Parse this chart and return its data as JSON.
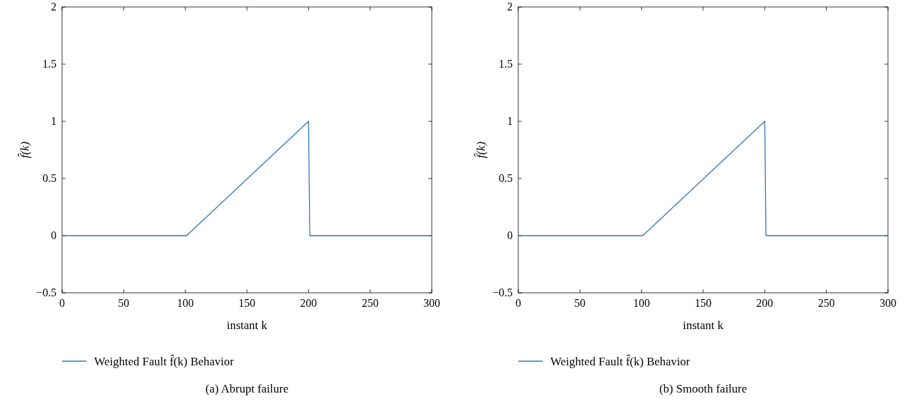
{
  "chart_data": [
    {
      "type": "line",
      "title": "(a)  Abrupt failure",
      "xlabel": "instant k",
      "ylabel": "f̂(k)",
      "x": [
        0,
        101,
        200,
        201,
        300
      ],
      "xlim": [
        0,
        300
      ],
      "ylim": [
        -0.5,
        2
      ],
      "xticks": [
        0,
        50,
        100,
        150,
        200,
        250,
        300
      ],
      "yticks": [
        {
          "value": -0.5,
          "label": "−0.5"
        },
        0,
        0.5,
        1,
        1.5,
        2
      ],
      "legend": "bottom",
      "grid": false,
      "series": [
        {
          "name": "Weighted Fault f̂(k) Behavior",
          "color": "#2e75b6",
          "values": [
            0,
            0,
            1,
            0,
            0
          ]
        }
      ]
    },
    {
      "type": "line",
      "title": "(b)  Smooth failure",
      "xlabel": "instant k",
      "ylabel": "f̂(k)",
      "x": [
        0,
        101,
        200,
        201,
        300
      ],
      "xlim": [
        0,
        300
      ],
      "ylim": [
        -0.5,
        2
      ],
      "xticks": [
        0,
        50,
        100,
        150,
        200,
        250,
        300
      ],
      "yticks": [
        {
          "value": -0.5,
          "label": "−0.5"
        },
        0,
        0.5,
        1,
        1.5,
        2
      ],
      "legend": "bottom",
      "grid": false,
      "series": [
        {
          "name": "Weighted Fault f̂(k) Behavior",
          "color": "#2e75b6",
          "values": [
            0,
            0,
            1,
            0,
            0
          ]
        }
      ]
    }
  ]
}
